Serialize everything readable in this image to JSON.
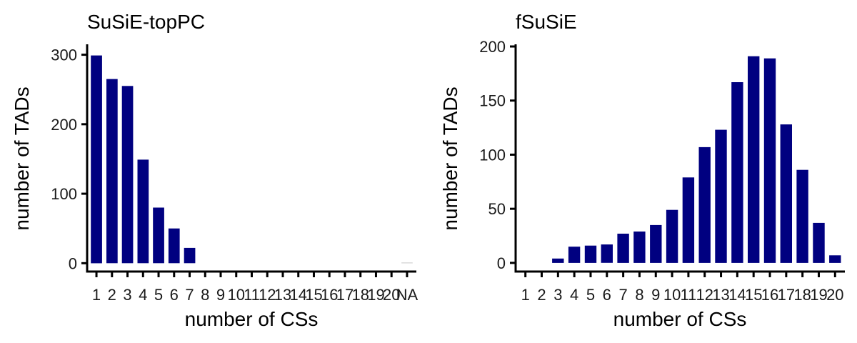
{
  "chart_data": [
    {
      "type": "bar",
      "title": "SuSiE-topPC",
      "xlabel": "number of CSs",
      "ylabel": "number of TADs",
      "categories": [
        "1",
        "2",
        "3",
        "4",
        "5",
        "6",
        "7",
        "8",
        "9",
        "10",
        "11",
        "12",
        "13",
        "14",
        "15",
        "16",
        "17",
        "18",
        "19",
        "20",
        "NA"
      ],
      "values": [
        299,
        265,
        255,
        149,
        80,
        50,
        22,
        0,
        0,
        0,
        0,
        0,
        0,
        0,
        0,
        0,
        0,
        0,
        0,
        0,
        1
      ],
      "ylim": [
        -12,
        315
      ],
      "yticks": [
        0,
        100,
        200,
        300
      ],
      "bar_color": "#000080",
      "grid": false
    },
    {
      "type": "bar",
      "title": "fSuSiE",
      "xlabel": "number of CSs",
      "ylabel": "number of TADs",
      "categories": [
        "1",
        "2",
        "3",
        "4",
        "5",
        "6",
        "7",
        "8",
        "9",
        "10",
        "11",
        "12",
        "13",
        "14",
        "15",
        "16",
        "17",
        "18",
        "19",
        "20"
      ],
      "values": [
        0,
        0,
        4,
        15,
        16,
        17,
        27,
        29,
        35,
        49,
        79,
        107,
        123,
        167,
        191,
        189,
        128,
        86,
        37,
        7
      ],
      "ylim": [
        -8,
        202
      ],
      "yticks": [
        0,
        50,
        100,
        150,
        200
      ],
      "bar_color": "#000080",
      "grid": false
    }
  ]
}
